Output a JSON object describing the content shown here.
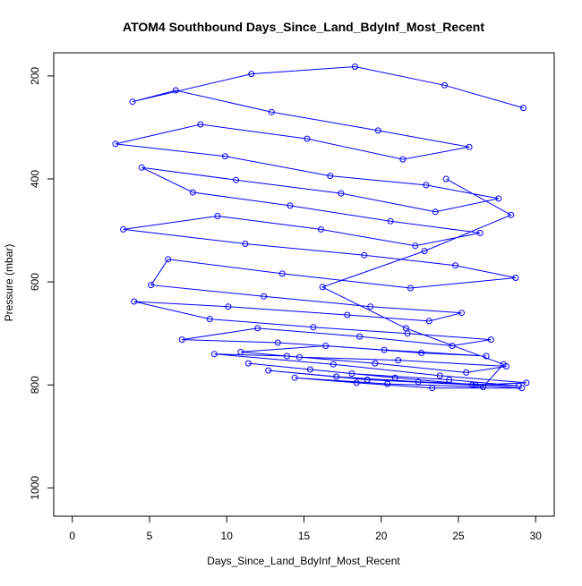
{
  "chart_data": {
    "type": "scatter",
    "title": "ATOM4 Southbound Days_Since_Land_BdyInf_Most_Recent",
    "xlabel": "Days_Since_Land_BdyInf_Most_Recent",
    "ylabel": "Pressure (mbar)",
    "xlim": [
      -1.2,
      31.2
    ],
    "ylim": [
      1055,
      155
    ],
    "y_reversed": true,
    "xticks": [
      0,
      5,
      10,
      15,
      20,
      25,
      30
    ],
    "yticks": [
      200,
      400,
      600,
      800,
      1000
    ],
    "marker": "open-circle",
    "connected": true,
    "grid": false,
    "series_color": "#0000ff",
    "series": [
      {
        "x": [
          29.2,
          24.1,
          18.3,
          11.6,
          3.9,
          6.7,
          12.9,
          19.8,
          25.7,
          21.4,
          15.2,
          8.3,
          2.8,
          9.9,
          16.7,
          22.9,
          27.6,
          23.5,
          17.4,
          10.6,
          4.5,
          7.8,
          14.1,
          20.6,
          26.4,
          22.2,
          16.1,
          9.4,
          3.3,
          11.2,
          18.9,
          24.8,
          28.7,
          21.9,
          13.6,
          6.2,
          5.1,
          12.4,
          19.3,
          25.2,
          23.1,
          17.8,
          10.1,
          4.0,
          8.9,
          15.6,
          21.7,
          27.1,
          24.6,
          18.6,
          12.0,
          7.1,
          13.3,
          20.2,
          26.8,
          22.6,
          16.4,
          10.9,
          14.7,
          21.1,
          28.1,
          25.5,
          19.6,
          13.9,
          9.2,
          16.9,
          23.8,
          29.4,
          26.1,
          20.9,
          15.4,
          11.4,
          18.1,
          24.4,
          28.9,
          22.4,
          17.1,
          12.7,
          19.1,
          25.9,
          29.1,
          23.3,
          18.4,
          14.4,
          20.4,
          26.6,
          27.9,
          21.6,
          16.2,
          22.8,
          28.4,
          24.2
        ],
        "y": [
          262,
          218,
          182,
          196,
          250,
          228,
          270,
          306,
          338,
          362,
          322,
          294,
          332,
          356,
          394,
          412,
          438,
          464,
          428,
          402,
          378,
          426,
          452,
          482,
          505,
          530,
          498,
          472,
          498,
          526,
          548,
          568,
          592,
          612,
          584,
          556,
          606,
          628,
          648,
          660,
          676,
          664,
          648,
          638,
          672,
          688,
          700,
          712,
          724,
          706,
          690,
          712,
          718,
          732,
          744,
          738,
          724,
          736,
          746,
          752,
          764,
          776,
          758,
          744,
          740,
          760,
          782,
          796,
          800,
          786,
          770,
          758,
          778,
          790,
          802,
          794,
          784,
          772,
          790,
          800,
          806,
          806,
          796,
          786,
          798,
          804,
          760,
          690,
          610,
          540,
          470,
          400
        ]
      }
    ]
  }
}
